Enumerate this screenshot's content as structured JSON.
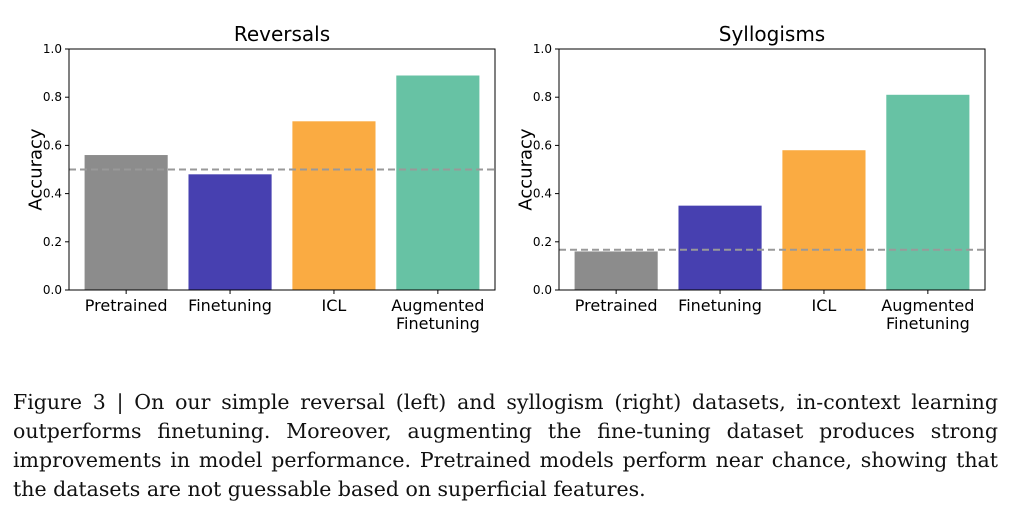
{
  "chart_data": [
    {
      "type": "bar",
      "title": "Reversals",
      "ylabel": "Accuracy",
      "xlabel": "",
      "ylim": [
        0,
        1.0
      ],
      "yticks": [
        "0.0",
        "0.2",
        "0.4",
        "0.6",
        "0.8",
        "1.0"
      ],
      "categories": [
        "Pretrained",
        "Finetuning",
        "ICL",
        "Augmented Finetuning"
      ],
      "values": [
        0.56,
        0.48,
        0.7,
        0.89
      ],
      "colors": [
        "#8c8c8c",
        "#4740b0",
        "#faab42",
        "#67c2a4"
      ],
      "reference_line": 0.5,
      "reference_line_color": "#999999",
      "grid": false
    },
    {
      "type": "bar",
      "title": "Syllogisms",
      "ylabel": "Accuracy",
      "xlabel": "",
      "ylim": [
        0,
        1.0
      ],
      "yticks": [
        "0.0",
        "0.2",
        "0.4",
        "0.6",
        "0.8",
        "1.0"
      ],
      "categories": [
        "Pretrained",
        "Finetuning",
        "ICL",
        "Augmented Finetuning"
      ],
      "values": [
        0.16,
        0.35,
        0.58,
        0.81
      ],
      "colors": [
        "#8c8c8c",
        "#4740b0",
        "#faab42",
        "#67c2a4"
      ],
      "reference_line": 0.167,
      "reference_line_color": "#999999",
      "grid": false
    }
  ],
  "caption": "Figure 3 | On our simple reversal (left) and syllogism (right) datasets, in-context learning outperforms finetuning. Moreover, augmenting the fine-tuning dataset produces strong improvements in model performance. Pretrained models perform near chance, showing that the datasets are not guessable based on superficial features."
}
